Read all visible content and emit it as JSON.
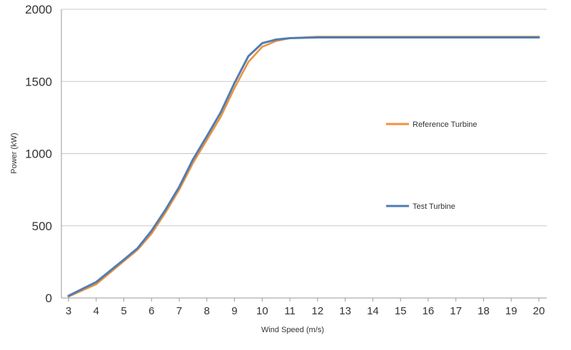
{
  "chart_data": {
    "type": "line",
    "title": "",
    "xlabel": "Wind Speed (m/s)",
    "ylabel": "Power (kW)",
    "xlim": [
      3,
      20
    ],
    "ylim": [
      0,
      2000
    ],
    "x_ticks": [
      "3",
      "4",
      "5",
      "6",
      "7",
      "8",
      "9",
      "10",
      "11",
      "12",
      "13",
      "14",
      "15",
      "16",
      "17",
      "18",
      "19",
      "20"
    ],
    "y_ticks": [
      "0",
      "500",
      "1000",
      "1500",
      "2000"
    ],
    "grid": "horizontal",
    "legend_position": "right",
    "series": [
      {
        "name": "Reference Turbine",
        "color": "#f0923c",
        "x": [
          3,
          4,
          5,
          5.5,
          6,
          6.5,
          7,
          7.5,
          8,
          8.5,
          9,
          9.5,
          10,
          10.5,
          11,
          12,
          13,
          14,
          15,
          16,
          17,
          18,
          19,
          20
        ],
        "y": [
          10,
          95,
          255,
          335,
          445,
          590,
          750,
          935,
          1095,
          1255,
          1455,
          1635,
          1740,
          1780,
          1800,
          1810,
          1810,
          1810,
          1810,
          1810,
          1810,
          1810,
          1810,
          1810
        ]
      },
      {
        "name": "Test Turbine",
        "color": "#4f7db5",
        "x": [
          3,
          4,
          5,
          5.5,
          6,
          6.5,
          7,
          7.5,
          8,
          8.5,
          9,
          9.5,
          10,
          10.5,
          11,
          12,
          13,
          14,
          15,
          16,
          17,
          18,
          19,
          20
        ],
        "y": [
          15,
          110,
          265,
          345,
          465,
          610,
          770,
          960,
          1120,
          1285,
          1490,
          1675,
          1765,
          1790,
          1800,
          1805,
          1805,
          1805,
          1805,
          1805,
          1805,
          1805,
          1805,
          1805
        ]
      }
    ]
  }
}
